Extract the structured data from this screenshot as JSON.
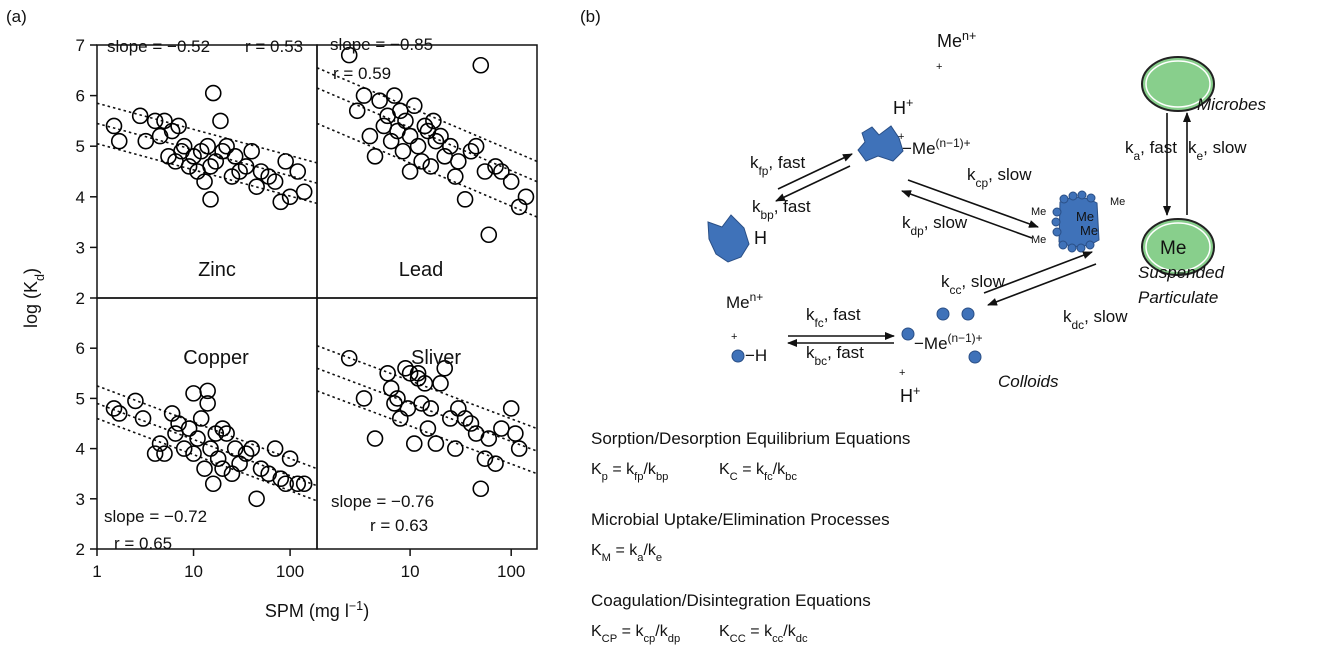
{
  "figure_a": {
    "label": "(a)",
    "x_label": [
      {
        "text": "SPM (mg l"
      },
      {
        "sup": "−1"
      },
      {
        "text": ")"
      }
    ],
    "y_label": [
      {
        "text": "log (K"
      },
      {
        "sub": "d"
      },
      {
        "text": ")"
      }
    ]
  },
  "chart_data": [
    {
      "type": "scatter",
      "title": "Zinc",
      "annotations": [
        "slope = −0.52",
        "r = 0.53"
      ],
      "xscale": "log",
      "color": "#000000",
      "xlim": [
        1,
        190
      ],
      "ylim": [
        2,
        7
      ],
      "yticks": [
        2,
        3,
        4,
        5,
        6,
        7
      ],
      "x": [
        1.5,
        1.7,
        2.8,
        3.2,
        4,
        4.5,
        5,
        5.5,
        6,
        6.5,
        7,
        7.5,
        8,
        9,
        10,
        11,
        12,
        13,
        14,
        15,
        16,
        17,
        19,
        20,
        22,
        25,
        27,
        30,
        35,
        40,
        45,
        50,
        60,
        70,
        80,
        90,
        100,
        120,
        140,
        15
      ],
      "values": [
        5.4,
        5.1,
        5.6,
        5.1,
        5.5,
        5.2,
        5.5,
        4.8,
        5.3,
        4.7,
        5.4,
        4.9,
        5.0,
        4.6,
        4.8,
        4.5,
        4.9,
        4.3,
        5.0,
        4.6,
        6.05,
        4.7,
        5.5,
        4.9,
        5.0,
        4.4,
        4.8,
        4.5,
        4.6,
        4.9,
        4.2,
        4.5,
        4.4,
        4.3,
        3.9,
        4.7,
        4.0,
        4.5,
        4.1,
        3.95
      ],
      "lines": [
        {
          "x": [
            1,
            190
          ],
          "values": [
            5.85,
            4.67
          ]
        },
        {
          "x": [
            1,
            190
          ],
          "values": [
            5.45,
            4.27
          ]
        },
        {
          "x": [
            1,
            190
          ],
          "values": [
            5.05,
            3.87
          ]
        }
      ]
    },
    {
      "type": "scatter",
      "title": "Lead",
      "annotations": [
        "slope = −0.85",
        "r = 0.59"
      ],
      "xscale": "log",
      "color": "#000000",
      "xlim": [
        1.2,
        180
      ],
      "ylim": [
        2,
        7
      ],
      "x": [
        2.5,
        3,
        3.5,
        4,
        4.5,
        5,
        5.5,
        6,
        6.5,
        7,
        7.5,
        8,
        8.5,
        9,
        10,
        10,
        11,
        12,
        13,
        14,
        15,
        16,
        18,
        20,
        22,
        25,
        28,
        30,
        35,
        40,
        45,
        50,
        55,
        60,
        70,
        80,
        100,
        120,
        140,
        17
      ],
      "values": [
        6.8,
        5.7,
        6.0,
        5.2,
        4.8,
        5.9,
        5.4,
        5.6,
        5.1,
        6.0,
        5.3,
        5.7,
        4.9,
        5.5,
        5.2,
        4.5,
        5.8,
        5.0,
        4.7,
        5.4,
        5.3,
        4.6,
        5.1,
        5.2,
        4.8,
        5.0,
        4.4,
        4.7,
        3.95,
        4.9,
        5.0,
        6.6,
        4.5,
        3.25,
        4.6,
        4.5,
        4.3,
        3.8,
        4.0,
        5.5
      ],
      "lines": [
        {
          "x": [
            1.2,
            180
          ],
          "values": [
            6.55,
            4.7
          ]
        },
        {
          "x": [
            1.2,
            180
          ],
          "values": [
            6.15,
            4.3
          ]
        },
        {
          "x": [
            1.2,
            180
          ],
          "values": [
            5.45,
            3.6
          ]
        }
      ]
    },
    {
      "type": "scatter",
      "title": "Copper",
      "annotations": [
        "slope = −0.72",
        "r = 0.65"
      ],
      "xscale": "log",
      "color": "#000000",
      "xlim": [
        1,
        190
      ],
      "ylim": [
        2,
        7
      ],
      "yticks": [
        2,
        3,
        4,
        5,
        6
      ],
      "xticks": [
        1,
        10,
        100
      ],
      "x": [
        1.5,
        1.7,
        2.5,
        3,
        4,
        4.5,
        5,
        6,
        6.5,
        7,
        8,
        9,
        10,
        10,
        11,
        12,
        13,
        14,
        15,
        16,
        17,
        18,
        20,
        20,
        22,
        25,
        27,
        30,
        35,
        40,
        45,
        50,
        60,
        70,
        80,
        90,
        100,
        120,
        140,
        14
      ],
      "values": [
        4.8,
        4.7,
        4.95,
        4.6,
        3.9,
        4.1,
        3.9,
        4.7,
        4.3,
        4.5,
        4.0,
        4.4,
        5.1,
        3.9,
        4.2,
        4.6,
        3.6,
        5.15,
        4.0,
        3.3,
        4.3,
        3.8,
        4.4,
        3.6,
        4.3,
        3.5,
        4.0,
        3.7,
        3.9,
        4.0,
        3.0,
        3.6,
        3.5,
        4.0,
        3.4,
        3.3,
        3.8,
        3.3,
        3.3,
        4.9
      ],
      "lines": [
        {
          "x": [
            1,
            190
          ],
          "values": [
            5.25,
            3.6
          ]
        },
        {
          "x": [
            1,
            190
          ],
          "values": [
            4.9,
            3.26
          ]
        },
        {
          "x": [
            1,
            190
          ],
          "values": [
            4.6,
            2.96
          ]
        }
      ]
    },
    {
      "type": "scatter",
      "title": "Sliver",
      "annotations": [
        "slope = −0.76",
        "r = 0.63"
      ],
      "xscale": "log",
      "color": "#000000",
      "xlim": [
        1.2,
        180
      ],
      "ylim": [
        2,
        7
      ],
      "xticks": [
        10,
        100
      ],
      "x": [
        2.5,
        3.5,
        4.5,
        6,
        6.5,
        7,
        7.5,
        8,
        9,
        9.5,
        10,
        11,
        12,
        13,
        14,
        15,
        16,
        18,
        20,
        22,
        25,
        28,
        30,
        35,
        40,
        45,
        50,
        55,
        60,
        70,
        80,
        100,
        110,
        120,
        12
      ],
      "values": [
        5.8,
        5.0,
        4.2,
        5.5,
        5.2,
        4.9,
        5.0,
        4.6,
        5.6,
        4.8,
        5.5,
        4.1,
        5.4,
        4.9,
        5.3,
        4.4,
        4.8,
        4.1,
        5.3,
        5.6,
        4.6,
        4.0,
        4.8,
        4.6,
        4.5,
        4.3,
        3.2,
        3.8,
        4.2,
        3.7,
        4.4,
        4.8,
        4.3,
        4.0,
        5.5
      ],
      "lines": [
        {
          "x": [
            1.2,
            180
          ],
          "values": [
            6.05,
            4.4
          ]
        },
        {
          "x": [
            1.2,
            180
          ],
          "values": [
            5.6,
            3.95
          ]
        },
        {
          "x": [
            1.2,
            180
          ],
          "values": [
            5.15,
            3.5
          ]
        }
      ]
    }
  ],
  "diagram": {
    "label": "(b)",
    "labels": [
      [
        {
          "text": "Me"
        },
        {
          "sup": "n+"
        }
      ],
      [
        {
          "text": "+"
        }
      ],
      [
        {
          "text": "Microbes"
        }
      ],
      [
        {
          "text": "H"
        },
        {
          "sup": "+"
        }
      ],
      [
        {
          "text": "+"
        }
      ],
      [
        {
          "text": "−Me"
        },
        {
          "sup": "(n−1)+"
        }
      ],
      [
        {
          "text": "k"
        },
        {
          "sub": "fp"
        },
        {
          "text": ", fast"
        }
      ],
      [
        {
          "text": "k"
        },
        {
          "sub": "bp"
        },
        {
          "text": ", fast"
        }
      ],
      [
        {
          "text": "k"
        },
        {
          "sub": "cp"
        },
        {
          "text": ", slow"
        }
      ],
      [
        {
          "text": "k"
        },
        {
          "sub": "dp"
        },
        {
          "text": ", slow"
        }
      ],
      [
        {
          "text": "k"
        },
        {
          "sub": "a"
        },
        {
          "text": ", fast"
        }
      ],
      [
        {
          "text": "k"
        },
        {
          "sub": "e"
        },
        {
          "text": ", slow"
        }
      ],
      [
        {
          "text": "H"
        }
      ],
      [
        {
          "text": "Me"
        }
      ],
      [
        {
          "text": "Me"
        }
      ],
      [
        {
          "text": "Me"
        }
      ],
      [
        {
          "text": "Me"
        }
      ],
      [
        {
          "text": "Me"
        }
      ],
      [
        {
          "text": "Me"
        }
      ],
      [
        {
          "text": "Suspended"
        }
      ],
      [
        {
          "text": "Particulate"
        }
      ],
      [
        {
          "text": "k"
        },
        {
          "sub": "cc"
        },
        {
          "text": ", slow"
        }
      ],
      [
        {
          "text": "k"
        },
        {
          "sub": "dc"
        },
        {
          "text": ", slow"
        }
      ],
      [
        {
          "text": "Me"
        },
        {
          "sup": "n+"
        }
      ],
      [
        {
          "text": "+"
        }
      ],
      [
        {
          "text": "−H"
        }
      ],
      [
        {
          "text": "k"
        },
        {
          "sub": "fc"
        },
        {
          "text": ", fast"
        }
      ],
      [
        {
          "text": "k"
        },
        {
          "sub": "bc"
        },
        {
          "text": ", fast"
        }
      ],
      [
        {
          "text": "−Me"
        },
        {
          "sup": "(n−1)+"
        }
      ],
      [
        {
          "text": "Colloids"
        }
      ],
      [
        {
          "text": "+"
        }
      ],
      [
        {
          "text": "H"
        },
        {
          "sup": "+"
        }
      ]
    ],
    "equations": [
      {
        "heading": "Sorption/Desorption Equilibrium Equations",
        "formulas": [
          [
            {
              "text": "K"
            },
            {
              "sub": "p"
            },
            {
              "text": " = k"
            },
            {
              "sub": "fp"
            },
            {
              "text": "/k"
            },
            {
              "sub": "bp"
            }
          ],
          [
            {
              "text": "K"
            },
            {
              "sub": "C"
            },
            {
              "text": " = k"
            },
            {
              "sub": "fc"
            },
            {
              "text": "/k"
            },
            {
              "sub": "bc"
            }
          ]
        ]
      },
      {
        "heading": "Microbial Uptake/Elimination Processes",
        "formulas": [
          [
            {
              "text": "K"
            },
            {
              "sub": "M"
            },
            {
              "text": " = k"
            },
            {
              "sub": "a"
            },
            {
              "text": "/k"
            },
            {
              "sub": "e"
            }
          ]
        ]
      },
      {
        "heading": "Coagulation/Disintegration Equations",
        "formulas": [
          [
            {
              "text": "K"
            },
            {
              "sub": "CP"
            },
            {
              "text": " = k"
            },
            {
              "sub": "cp"
            },
            {
              "text": "/k"
            },
            {
              "sub": "dp"
            }
          ],
          [
            {
              "text": "K"
            },
            {
              "sub": "CC"
            },
            {
              "text": " = k"
            },
            {
              "sub": "cc"
            },
            {
              "text": "/k"
            },
            {
              "sub": "dc"
            }
          ]
        ]
      }
    ]
  }
}
